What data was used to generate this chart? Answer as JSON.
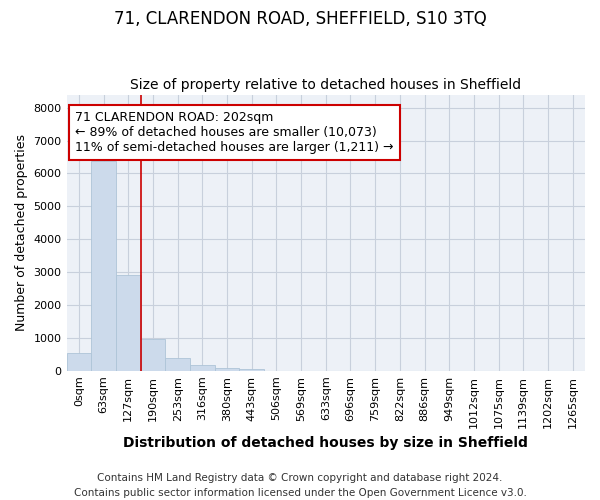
{
  "title": "71, CLARENDON ROAD, SHEFFIELD, S10 3TQ",
  "subtitle": "Size of property relative to detached houses in Sheffield",
  "xlabel": "Distribution of detached houses by size in Sheffield",
  "ylabel": "Number of detached properties",
  "categories": [
    "0sqm",
    "63sqm",
    "127sqm",
    "190sqm",
    "253sqm",
    "316sqm",
    "380sqm",
    "443sqm",
    "506sqm",
    "569sqm",
    "633sqm",
    "696sqm",
    "759sqm",
    "822sqm",
    "886sqm",
    "949sqm",
    "1012sqm",
    "1075sqm",
    "1139sqm",
    "1202sqm",
    "1265sqm"
  ],
  "values": [
    550,
    6380,
    2900,
    980,
    380,
    180,
    100,
    70,
    0,
    0,
    0,
    0,
    0,
    0,
    0,
    0,
    0,
    0,
    0,
    0,
    0
  ],
  "bar_color": "#ccdaeb",
  "bar_edge_color": "#aec4d8",
  "red_line_x": 3,
  "annotation_text": "71 CLARENDON ROAD: 202sqm\n← 89% of detached houses are smaller (10,073)\n11% of semi-detached houses are larger (1,211) →",
  "annotation_box_color": "#ffffff",
  "annotation_box_edge_color": "#cc0000",
  "red_line_color": "#cc0000",
  "ylim": [
    0,
    8400
  ],
  "yticks": [
    0,
    1000,
    2000,
    3000,
    4000,
    5000,
    6000,
    7000,
    8000
  ],
  "footnote": "Contains HM Land Registry data © Crown copyright and database right 2024.\nContains public sector information licensed under the Open Government Licence v3.0.",
  "background_color": "#edf1f7",
  "grid_color": "#c8d0dc",
  "title_fontsize": 12,
  "subtitle_fontsize": 10,
  "xlabel_fontsize": 10,
  "ylabel_fontsize": 9,
  "tick_fontsize": 8,
  "annot_fontsize": 9,
  "footnote_fontsize": 7.5
}
